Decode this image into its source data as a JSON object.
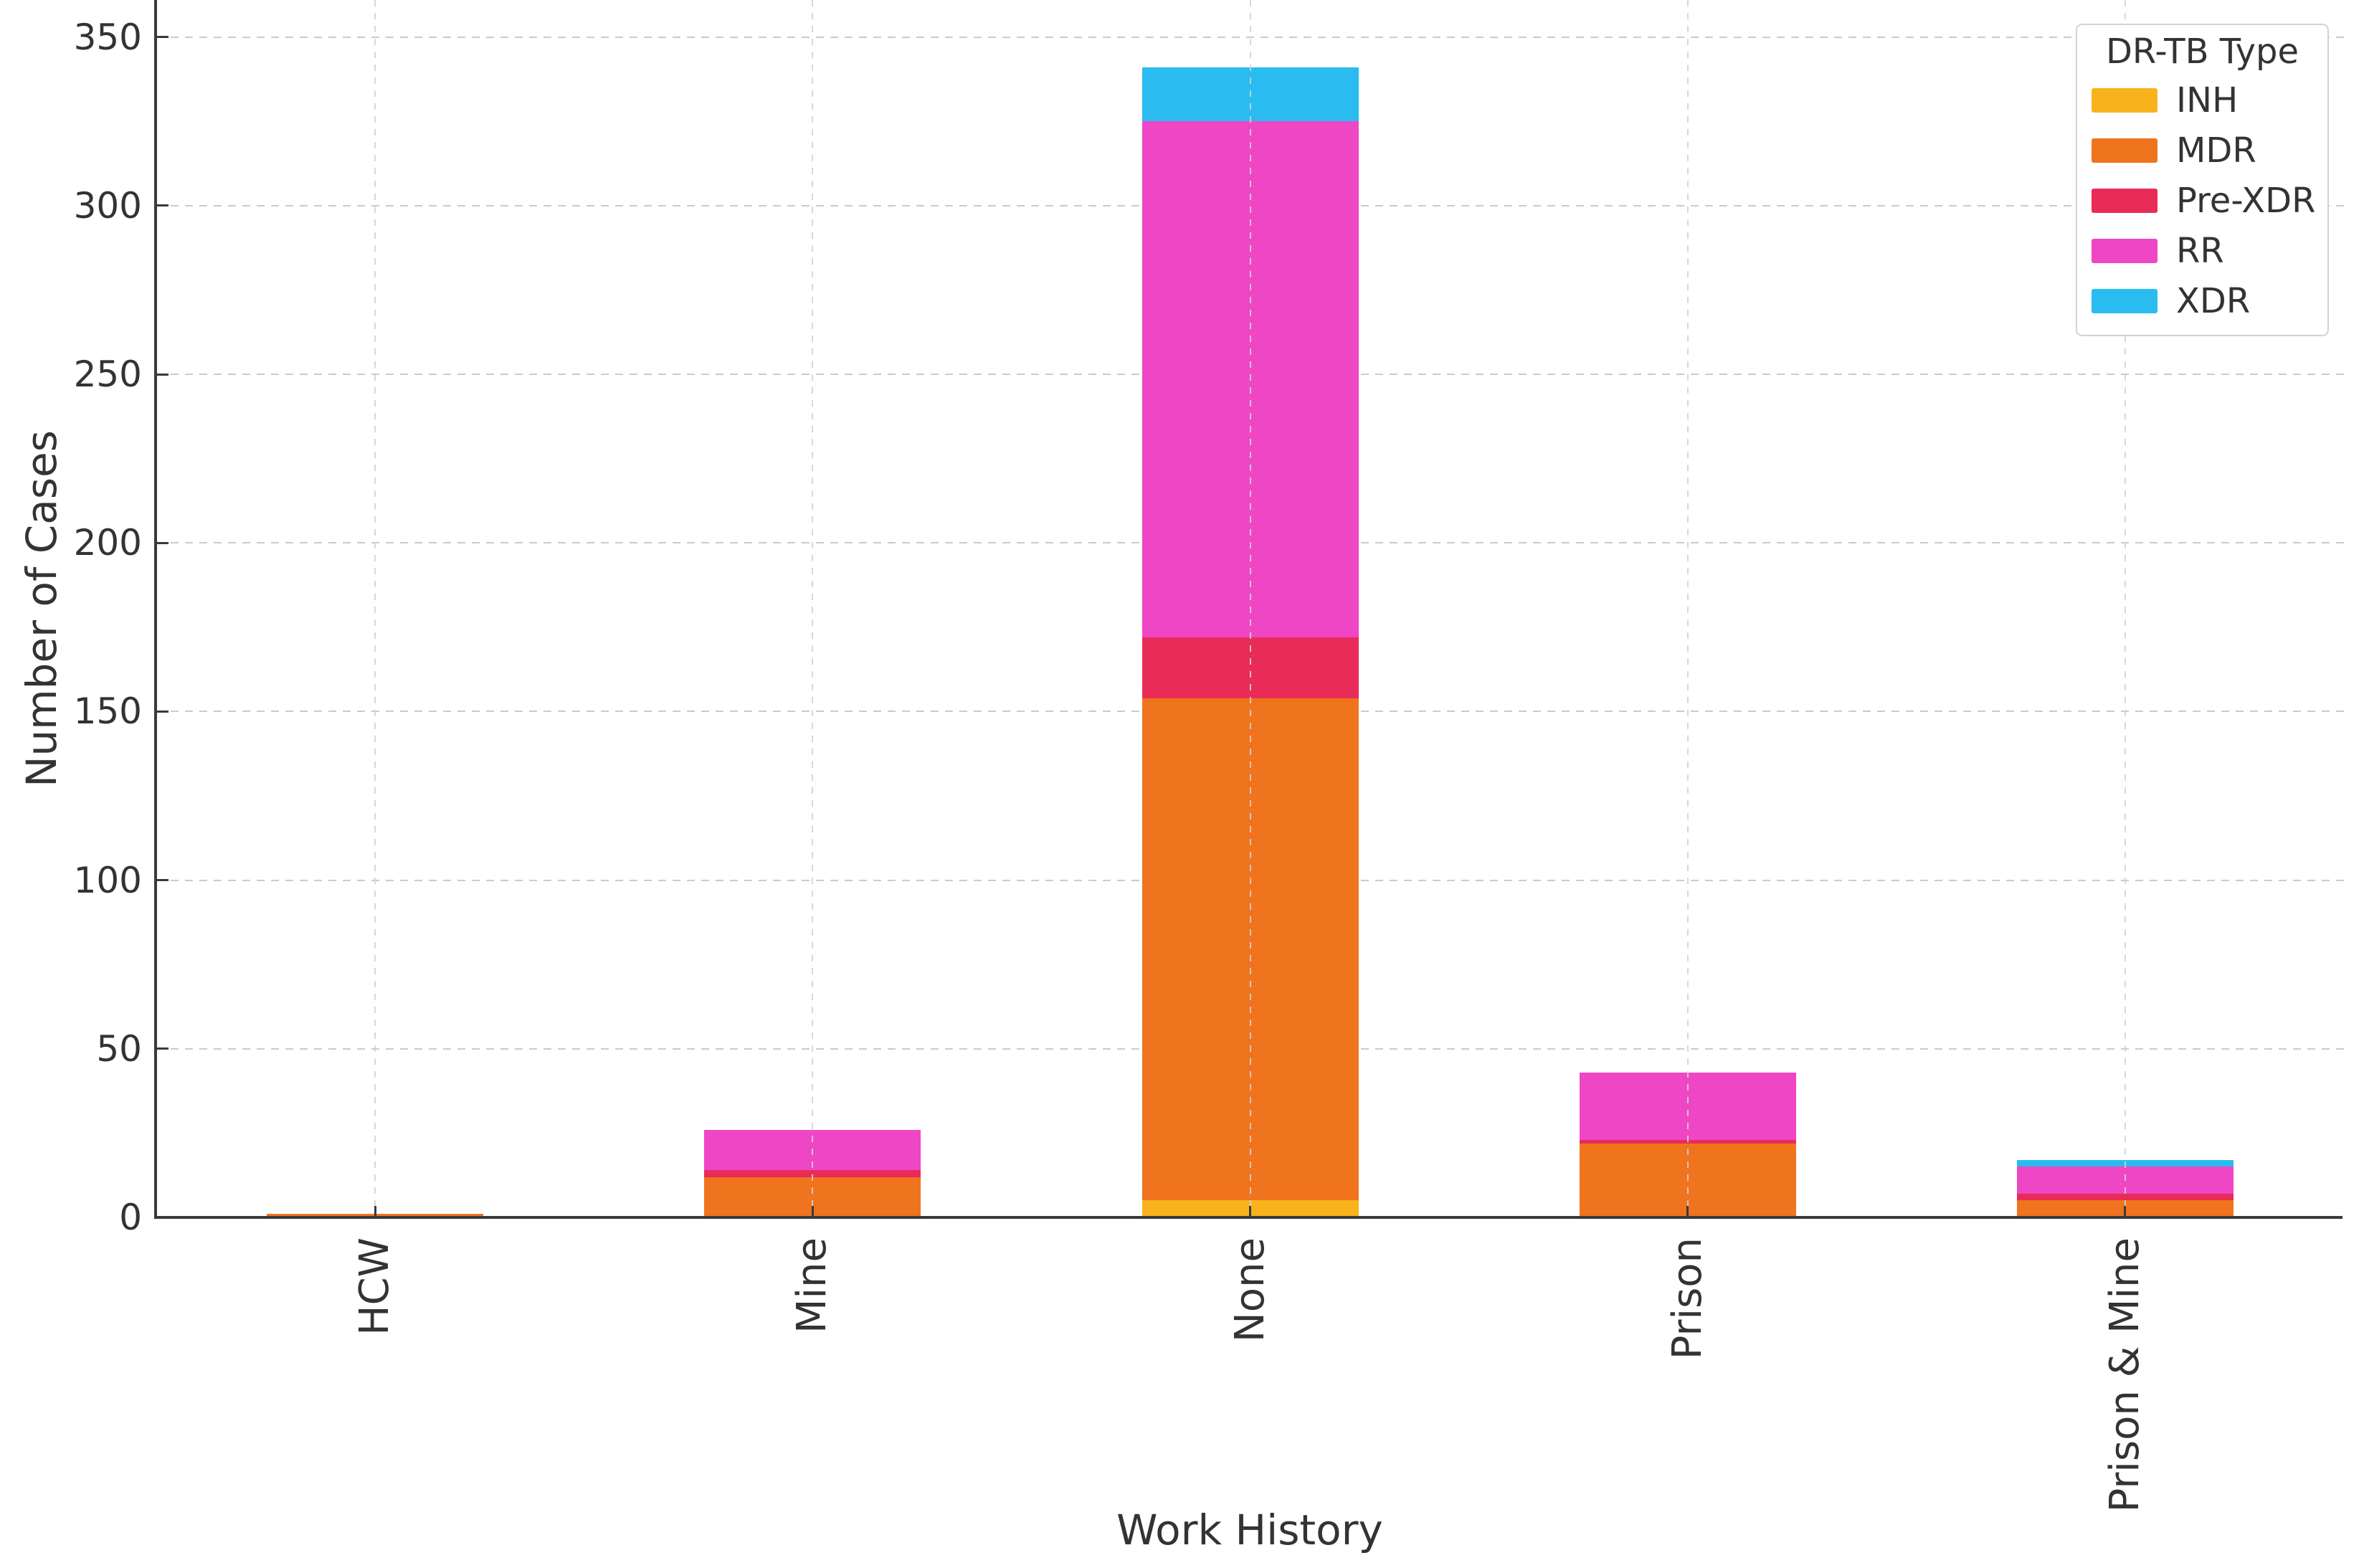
{
  "chart_data": {
    "type": "bar",
    "stacked": true,
    "title": "",
    "xlabel": "Work History",
    "ylabel": "Number of Cases",
    "categories": [
      "HCW",
      "Mine",
      "None",
      "Prison",
      "Prison & Mine"
    ],
    "series": [
      {
        "name": "INH",
        "color": "#F8B31C",
        "values": [
          0,
          0,
          5,
          0,
          0
        ]
      },
      {
        "name": "MDR",
        "color": "#F0731E",
        "values": [
          1,
          12,
          149,
          22,
          5
        ]
      },
      {
        "name": "Pre-XDR",
        "color": "#E92B58",
        "values": [
          0,
          2,
          18,
          1,
          2
        ]
      },
      {
        "name": "RR",
        "color": "#EE46C4",
        "values": [
          0,
          12,
          153,
          20,
          8
        ]
      },
      {
        "name": "XDR",
        "color": "#2ABCF0",
        "values": [
          0,
          0,
          16,
          0,
          2
        ]
      }
    ],
    "totals": [
      1,
      26,
      341,
      43,
      17
    ],
    "yticks": [
      0,
      50,
      100,
      150,
      200,
      250,
      300,
      350
    ],
    "ylim": [
      0,
      361
    ],
    "grid": "dashed",
    "legend": {
      "title": "DR-TB Type",
      "position": "upper right"
    }
  },
  "style": {
    "background": "#ffffff",
    "text_color": "#333333",
    "spine_color": "#3a3a3a",
    "grid_color": "#cbcbcb"
  }
}
